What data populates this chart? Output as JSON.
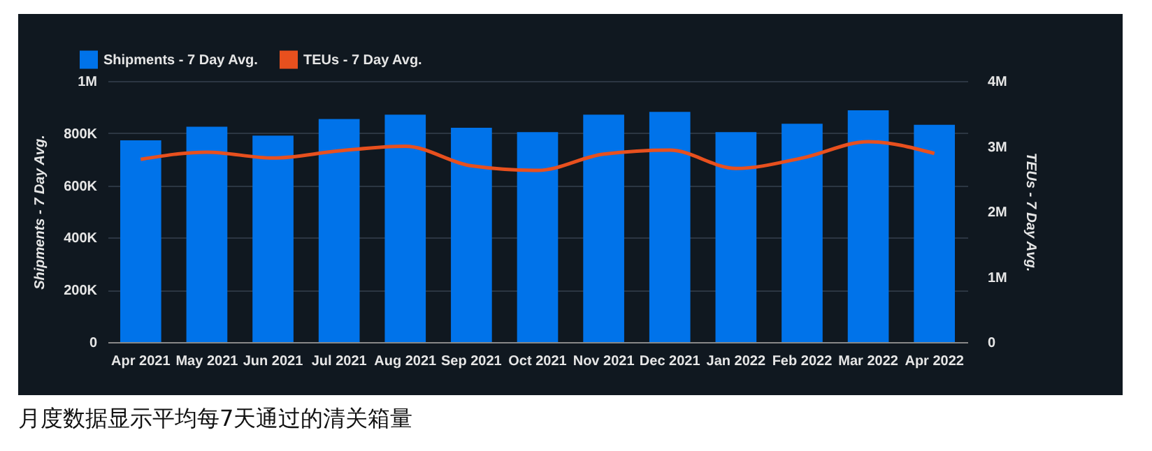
{
  "chart_data": {
    "type": "bar",
    "categories": [
      "Apr 2021",
      "May 2021",
      "Jun 2021",
      "Jul 2021",
      "Aug 2021",
      "Sep 2021",
      "Oct 2021",
      "Nov 2021",
      "Dec 2021",
      "Jan 2022",
      "Feb 2022",
      "Mar 2022",
      "Apr 2022"
    ],
    "series": [
      {
        "name": "Shipments - 7 Day Avg.",
        "color": "#0073ea",
        "values": [
          773000,
          825000,
          791000,
          854000,
          871000,
          821000,
          804000,
          871000,
          882000,
          804000,
          836000,
          888000,
          832000
        ]
      },
      {
        "name": "TEUs - 7 Day Avg.",
        "type": "line",
        "axis": "y2",
        "color": "#e8501e",
        "values": [
          2800000,
          2910000,
          2820000,
          2930000,
          3000000,
          2700000,
          2630000,
          2880000,
          2940000,
          2660000,
          2820000,
          3070000,
          2890000
        ]
      }
    ],
    "ylabel": "Shipments - 7 Day Avg.",
    "y2label": "TEUs - 7 Day Avg.",
    "ylim": [
      0,
      1000000
    ],
    "yticks": [
      {
        "value": 0,
        "label": "0"
      },
      {
        "value": 200000,
        "label": "200K"
      },
      {
        "value": 400000,
        "label": "400K"
      },
      {
        "value": 600000,
        "label": "600K"
      },
      {
        "value": 800000,
        "label": "800K"
      },
      {
        "value": 1000000,
        "label": "1M"
      }
    ],
    "y2lim": [
      0,
      4000000
    ],
    "y2ticks": [
      {
        "value": 0,
        "label": "0"
      },
      {
        "value": 1000000,
        "label": "1M"
      },
      {
        "value": 2000000,
        "label": "2M"
      },
      {
        "value": 3000000,
        "label": "3M"
      },
      {
        "value": 4000000,
        "label": "4M"
      }
    ],
    "grid": "y",
    "legend": "top left",
    "marker": "none",
    "line_style": "solid",
    "annotations": [
      "月度数据显示平均每7天通过的清关箱量"
    ]
  }
}
